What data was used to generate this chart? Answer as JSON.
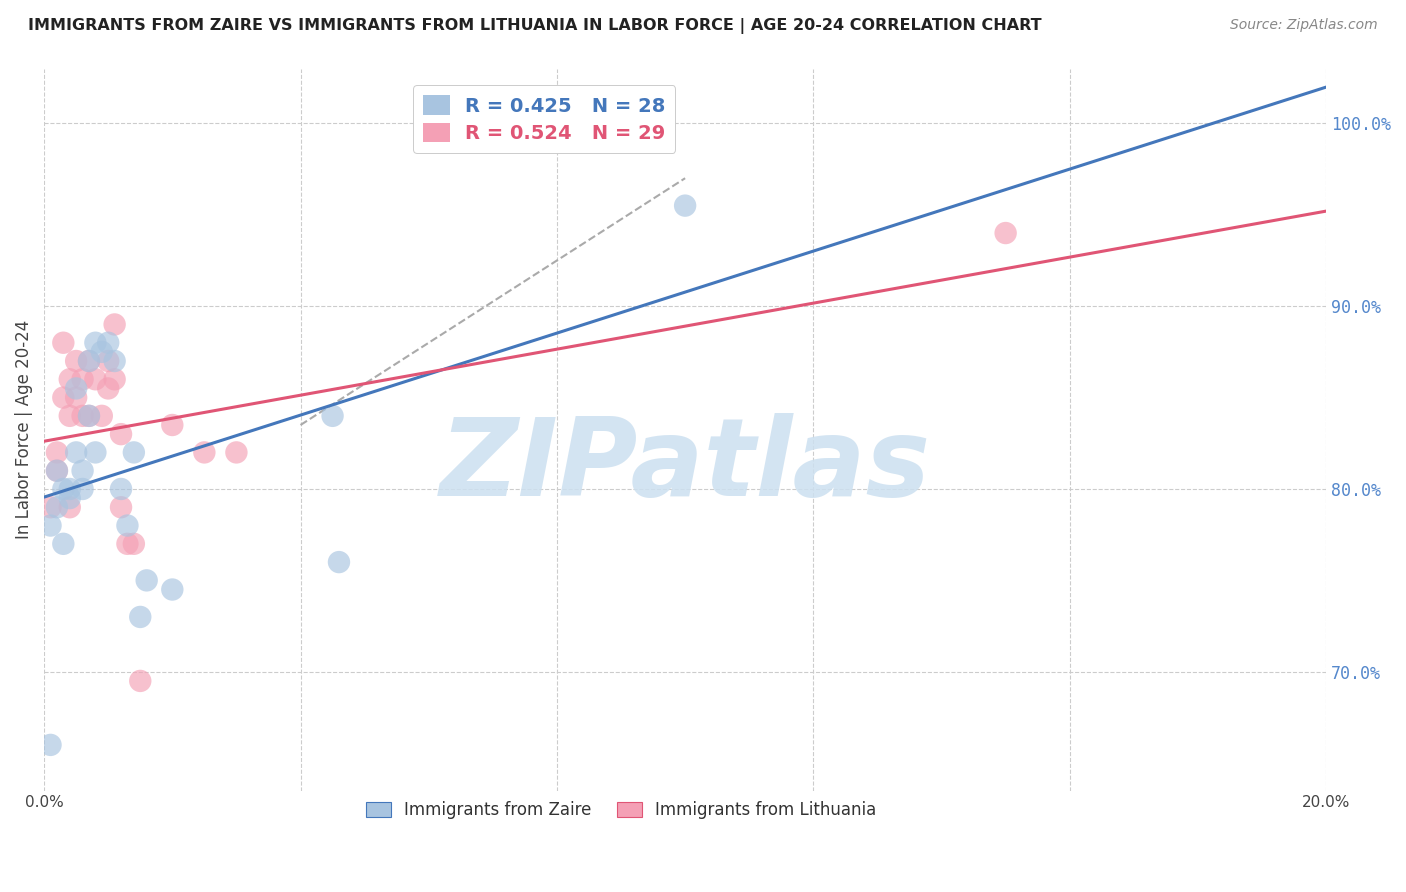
{
  "title": "IMMIGRANTS FROM ZAIRE VS IMMIGRANTS FROM LITHUANIA IN LABOR FORCE | AGE 20-24 CORRELATION CHART",
  "source": "Source: ZipAtlas.com",
  "ylabel": "In Labor Force | Age 20-24",
  "xlim": [
    0.0,
    0.2
  ],
  "ylim": [
    0.635,
    1.03
  ],
  "xticks": [
    0.0,
    0.04,
    0.08,
    0.12,
    0.16,
    0.2
  ],
  "xtick_labels": [
    "0.0%",
    "",
    "",
    "",
    "",
    "20.0%"
  ],
  "yticks_right": [
    0.7,
    0.8,
    0.9,
    1.0
  ],
  "ytick_right_labels": [
    "70.0%",
    "80.0%",
    "90.0%",
    "100.0%"
  ],
  "grid_color": "#cccccc",
  "background_color": "#ffffff",
  "zaire_color": "#a8c4e0",
  "lithuania_color": "#f4a0b5",
  "zaire_line_color": "#4477bb",
  "lithuania_line_color": "#e05575",
  "zaire_R": 0.425,
  "zaire_N": 28,
  "lithuania_R": 0.524,
  "lithuania_N": 29,
  "watermark": "ZIPatlas",
  "watermark_zi_color": "#c8dff0",
  "watermark_atlas_color": "#b0cce8",
  "zaire_x": [
    0.001,
    0.001,
    0.002,
    0.002,
    0.003,
    0.003,
    0.004,
    0.004,
    0.005,
    0.005,
    0.006,
    0.006,
    0.007,
    0.007,
    0.008,
    0.008,
    0.009,
    0.01,
    0.011,
    0.012,
    0.013,
    0.014,
    0.015,
    0.016,
    0.02,
    0.045,
    0.046,
    0.1
  ],
  "zaire_y": [
    0.66,
    0.78,
    0.79,
    0.81,
    0.77,
    0.8,
    0.795,
    0.8,
    0.82,
    0.855,
    0.8,
    0.81,
    0.84,
    0.87,
    0.82,
    0.88,
    0.875,
    0.88,
    0.87,
    0.8,
    0.78,
    0.82,
    0.73,
    0.75,
    0.745,
    0.84,
    0.76,
    0.955
  ],
  "lithuania_x": [
    0.001,
    0.002,
    0.002,
    0.003,
    0.003,
    0.004,
    0.004,
    0.004,
    0.005,
    0.005,
    0.006,
    0.006,
    0.007,
    0.007,
    0.008,
    0.009,
    0.01,
    0.01,
    0.011,
    0.011,
    0.012,
    0.012,
    0.013,
    0.014,
    0.015,
    0.02,
    0.025,
    0.03,
    0.15
  ],
  "lithuania_y": [
    0.79,
    0.81,
    0.82,
    0.85,
    0.88,
    0.79,
    0.84,
    0.86,
    0.85,
    0.87,
    0.84,
    0.86,
    0.84,
    0.87,
    0.86,
    0.84,
    0.87,
    0.855,
    0.89,
    0.86,
    0.79,
    0.83,
    0.77,
    0.77,
    0.695,
    0.835,
    0.82,
    0.82,
    0.94
  ],
  "dash_line_x": [
    0.04,
    0.1
  ],
  "dash_line_y": [
    0.835,
    0.97
  ]
}
